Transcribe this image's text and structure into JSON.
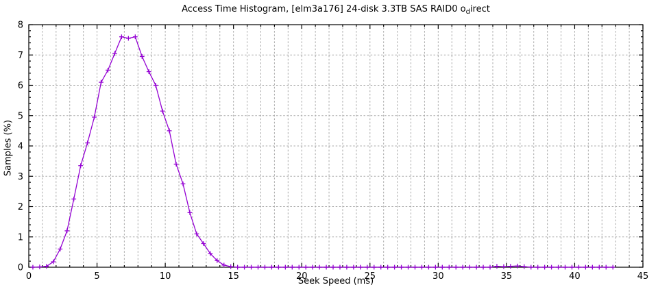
{
  "figure": {
    "title_pre": "Access Time Histogram, [elm3a176] 24-disk 3.3TB SAS RAID0 o",
    "title_sub": "d",
    "title_post": "irect",
    "background": "#ffffff"
  },
  "chart_data": {
    "type": "line",
    "title": "Access Time Histogram, [elm3a176] 24-disk 3.3TB SAS RAID0 o_direct",
    "xlabel": "Seek Speed (ms)",
    "ylabel": "Samples (%)",
    "xlim": [
      0,
      45
    ],
    "ylim": [
      0,
      8
    ],
    "xticks": [
      0,
      5,
      10,
      15,
      20,
      25,
      30,
      35,
      40,
      45
    ],
    "yticks": [
      0,
      1,
      2,
      3,
      4,
      5,
      6,
      7,
      8
    ],
    "minor_x_step": 1,
    "minor_y_step": 0.2,
    "grid": true,
    "legend": "none",
    "line_color": "#9400d3",
    "grid_color": "#a8a8a8",
    "axis_color": "#000000",
    "marker": "plus",
    "points": [
      [
        0.3,
        0
      ],
      [
        0.8,
        0.01
      ],
      [
        1.3,
        0.03
      ],
      [
        1.8,
        0.18
      ],
      [
        2.3,
        0.6
      ],
      [
        2.8,
        1.2
      ],
      [
        3.3,
        2.25
      ],
      [
        3.8,
        3.35
      ],
      [
        4.3,
        4.1
      ],
      [
        4.8,
        4.95
      ],
      [
        5.3,
        6.1
      ],
      [
        5.8,
        6.5
      ],
      [
        6.3,
        7.05
      ],
      [
        6.8,
        7.6
      ],
      [
        7.3,
        7.55
      ],
      [
        7.8,
        7.6
      ],
      [
        8.3,
        6.95
      ],
      [
        8.8,
        6.45
      ],
      [
        9.3,
        6.0
      ],
      [
        9.8,
        5.15
      ],
      [
        10.3,
        4.5
      ],
      [
        10.8,
        3.4
      ],
      [
        11.3,
        2.75
      ],
      [
        11.8,
        1.8
      ],
      [
        12.3,
        1.1
      ],
      [
        12.8,
        0.78
      ],
      [
        13.3,
        0.45
      ],
      [
        13.8,
        0.22
      ],
      [
        14.3,
        0.07
      ],
      [
        14.8,
        0.02
      ],
      [
        15.3,
        0
      ],
      [
        15.8,
        0
      ],
      [
        16.3,
        0
      ],
      [
        16.8,
        0
      ],
      [
        17.3,
        0
      ],
      [
        17.8,
        0
      ],
      [
        18.3,
        0
      ],
      [
        18.8,
        0
      ],
      [
        19.3,
        0
      ],
      [
        19.8,
        0
      ],
      [
        20.3,
        0
      ],
      [
        20.8,
        0
      ],
      [
        21.3,
        0
      ],
      [
        21.8,
        0
      ],
      [
        22.3,
        0
      ],
      [
        22.8,
        0
      ],
      [
        23.3,
        0
      ],
      [
        23.8,
        0
      ],
      [
        24.3,
        0
      ],
      [
        24.8,
        0
      ],
      [
        25.3,
        0
      ],
      [
        25.8,
        0
      ],
      [
        26.3,
        0
      ],
      [
        26.8,
        0
      ],
      [
        27.3,
        0
      ],
      [
        27.8,
        0
      ],
      [
        28.3,
        0
      ],
      [
        28.8,
        0
      ],
      [
        29.3,
        0
      ],
      [
        29.8,
        0
      ],
      [
        30.3,
        0
      ],
      [
        30.8,
        0
      ],
      [
        31.3,
        0
      ],
      [
        31.8,
        0
      ],
      [
        32.3,
        0
      ],
      [
        32.8,
        0
      ],
      [
        33.3,
        0
      ],
      [
        33.8,
        0
      ],
      [
        34.3,
        0.03
      ],
      [
        34.8,
        0.02
      ],
      [
        35.3,
        0.03
      ],
      [
        35.8,
        0.04
      ],
      [
        36.3,
        0.02
      ],
      [
        36.8,
        0
      ],
      [
        37.3,
        0
      ],
      [
        37.8,
        0
      ],
      [
        38.3,
        0
      ],
      [
        38.8,
        0
      ],
      [
        39.3,
        0
      ],
      [
        39.8,
        0
      ],
      [
        40.3,
        0
      ],
      [
        40.8,
        0
      ],
      [
        41.3,
        0
      ],
      [
        41.8,
        0
      ],
      [
        42.3,
        0
      ],
      [
        42.8,
        0
      ]
    ]
  }
}
